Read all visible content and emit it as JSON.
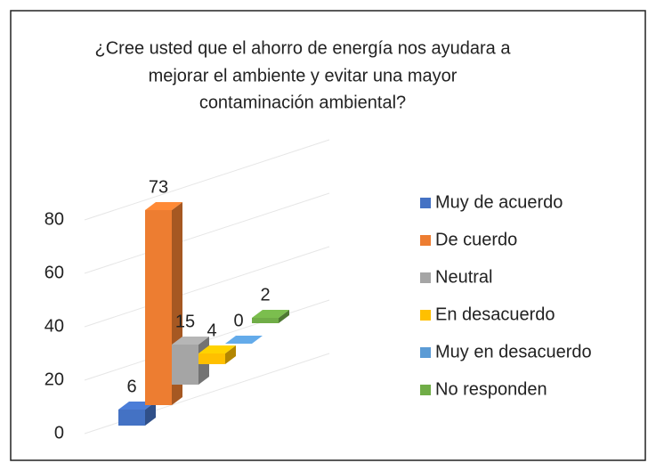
{
  "chart_data": {
    "type": "bar3d",
    "title_lines": [
      "¿Cree usted que el ahorro de energía nos ayudara a",
      "mejorar el ambiente y evitar una mayor",
      "contaminación ambiental?"
    ],
    "series": [
      {
        "name": "Muy de acuerdo",
        "color": "#4472c4",
        "values": [
          6
        ]
      },
      {
        "name": "De cuerdo",
        "color": "#ed7d31",
        "values": [
          73
        ]
      },
      {
        "name": "Neutral",
        "color": "#a5a5a5",
        "values": [
          15
        ]
      },
      {
        "name": "En desacuerdo",
        "color": "#ffc000",
        "values": [
          4
        ]
      },
      {
        "name": "Muy en desacuerdo",
        "color": "#5b9bd5",
        "values": [
          0
        ]
      },
      {
        "name": "No responden",
        "color": "#70ad47",
        "values": [
          2
        ]
      }
    ],
    "ylim": [
      0,
      80
    ],
    "yticks": [
      0,
      20,
      40,
      60,
      80
    ],
    "grid": true,
    "legend": "right"
  }
}
